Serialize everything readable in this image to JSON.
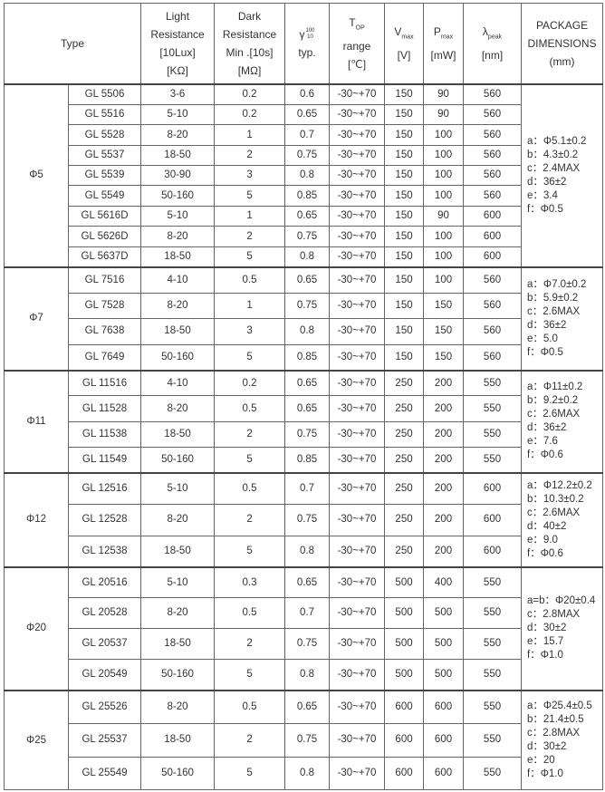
{
  "header": {
    "type": "Type",
    "light": [
      "Light",
      "Resistance",
      "[10Lux]",
      "[KΩ]"
    ],
    "dark": [
      "Dark",
      "Resistance",
      "Min .[10s]",
      "[MΩ]"
    ],
    "gamma": {
      "symbol": "γ",
      "sup": "100",
      "sub": "10",
      "label": "typ."
    },
    "top": {
      "main": "T",
      "sub": "OP",
      "line2": "range",
      "line3": "[℃]"
    },
    "vmax": {
      "main": "V",
      "sub": "max",
      "unit": "[V]"
    },
    "pmax": {
      "main": "P",
      "sub": "max",
      "unit": "[mW]"
    },
    "lpeak": {
      "main": "λ",
      "sub": "peak",
      "unit": "[nm]"
    },
    "pkg": [
      "PACKAGE",
      "DIMENSIONS",
      "(mm)"
    ]
  },
  "groups": [
    {
      "size": "Φ5",
      "pkg": [
        "a：Φ5.1±0.2",
        "b：4.3±0.2",
        "c：2.4MAX",
        "d：36±2",
        "e：3.4",
        "f：Φ0.5"
      ],
      "rows": [
        [
          "GL 5506",
          "3-6",
          "0.2",
          "0.6",
          "-30~+70",
          "150",
          "90",
          "560"
        ],
        [
          "GL 5516",
          "5-10",
          "0.2",
          "0.65",
          "-30~+70",
          "150",
          "90",
          "560"
        ],
        [
          "GL 5528",
          "8-20",
          "1",
          "0.7",
          "-30~+70",
          "150",
          "100",
          "560"
        ],
        [
          "GL 5537",
          "18-50",
          "2",
          "0.75",
          "-30~+70",
          "150",
          "100",
          "560"
        ],
        [
          "GL 5539",
          "30-90",
          "3",
          "0.8",
          "-30~+70",
          "150",
          "100",
          "560"
        ],
        [
          "GL 5549",
          "50-160",
          "5",
          "0.85",
          "-30~+70",
          "150",
          "100",
          "560"
        ],
        [
          "GL 5616D",
          "5-10",
          "1",
          "0.65",
          "-30~+70",
          "150",
          "90",
          "600"
        ],
        [
          "GL 5626D",
          "8-20",
          "2",
          "0.75",
          "-30~+70",
          "150",
          "100",
          "600"
        ],
        [
          "GL 5637D",
          "18-50",
          "5",
          "0.8",
          "-30~+70",
          "150",
          "100",
          "600"
        ]
      ]
    },
    {
      "size": "Φ7",
      "pkg": [
        "a：Φ7.0±0.2",
        "b：5.9±0.2",
        "c：2.6MAX",
        "d：36±2",
        "e：5.0",
        "f：Φ0.5"
      ],
      "rows": [
        [
          "GL 7516",
          "4-10",
          "0.5",
          "0.65",
          "-30~+70",
          "150",
          "100",
          "560"
        ],
        [
          "GL 7528",
          "8-20",
          "1",
          "0.75",
          "-30~+70",
          "150",
          "150",
          "560"
        ],
        [
          "GL 7638",
          "18-50",
          "3",
          "0.8",
          "-30~+70",
          "150",
          "150",
          "560"
        ],
        [
          "GL 7649",
          "50-160",
          "5",
          "0.85",
          "-30~+70",
          "150",
          "150",
          "560"
        ]
      ]
    },
    {
      "size": "Φ11",
      "pkg": [
        "a：Φ11±0.2",
        "b：9.2±0.2",
        "c：2.6MAX",
        "d：36±2",
        "e：7.6",
        "f：Φ0.6"
      ],
      "rows": [
        [
          "GL 11516",
          "4-10",
          "0.2",
          "0.65",
          "-30~+70",
          "250",
          "200",
          "550"
        ],
        [
          "GL 11528",
          "8-20",
          "0.5",
          "0.65",
          "-30~+70",
          "250",
          "200",
          "550"
        ],
        [
          "GL 11538",
          "18-50",
          "2",
          "0.75",
          "-30~+70",
          "250",
          "200",
          "550"
        ],
        [
          "GL 11549",
          "50-160",
          "5",
          "0.85",
          "-30~+70",
          "250",
          "200",
          "550"
        ]
      ]
    },
    {
      "size": "Φ12",
      "pkg": [
        "a：Φ12.2±0.2",
        "b：10.3±0.2",
        "c：2.6MAX",
        "d：40±2",
        "e：9.0",
        "f：Φ0.6"
      ],
      "rows": [
        [
          "GL 12516",
          "5-10",
          "0.5",
          "0.7",
          "-30~+70",
          "250",
          "200",
          "600"
        ],
        [
          "GL 12528",
          "8-20",
          "2",
          "0.75",
          "-30~+70",
          "250",
          "200",
          "600"
        ],
        [
          "GL 12538",
          "18-50",
          "5",
          "0.8",
          "-30~+70",
          "250",
          "200",
          "600"
        ]
      ]
    },
    {
      "size": "Φ20",
      "pkg": [
        "a=b：Φ20±0.4",
        "c：2.8MAX",
        "d：30±2",
        "e：15.7",
        "f：Φ1.0"
      ],
      "rows": [
        [
          "GL 20516",
          "5-10",
          "0.3",
          "0.65",
          "-30~+70",
          "500",
          "400",
          "550"
        ],
        [
          "GL 20528",
          "8-20",
          "0.5",
          "0.7",
          "-30~+70",
          "500",
          "500",
          "550"
        ],
        [
          "GL 20537",
          "18-50",
          "2",
          "0.75",
          "-30~+70",
          "500",
          "500",
          "550"
        ],
        [
          "GL 20549",
          "50-160",
          "5",
          "0.8",
          "-30~+70",
          "500",
          "500",
          "550"
        ]
      ]
    },
    {
      "size": "Φ25",
      "pkg": [
        "a：Φ25.4±0.5",
        "b：21.4±0.5",
        "c：2.8MAX",
        "d：30±2",
        "e：20",
        "f：Φ1.0"
      ],
      "rows": [
        [
          "GL 25526",
          "8-20",
          "0.5",
          "0.65",
          "-30~+70",
          "600",
          "600",
          "550"
        ],
        [
          "GL 25537",
          "18-50",
          "2",
          "0.75",
          "-30~+70",
          "600",
          "600",
          "550"
        ],
        [
          "GL 25549",
          "50-160",
          "5",
          "0.8",
          "-30~+70",
          "600",
          "600",
          "550"
        ]
      ]
    }
  ]
}
